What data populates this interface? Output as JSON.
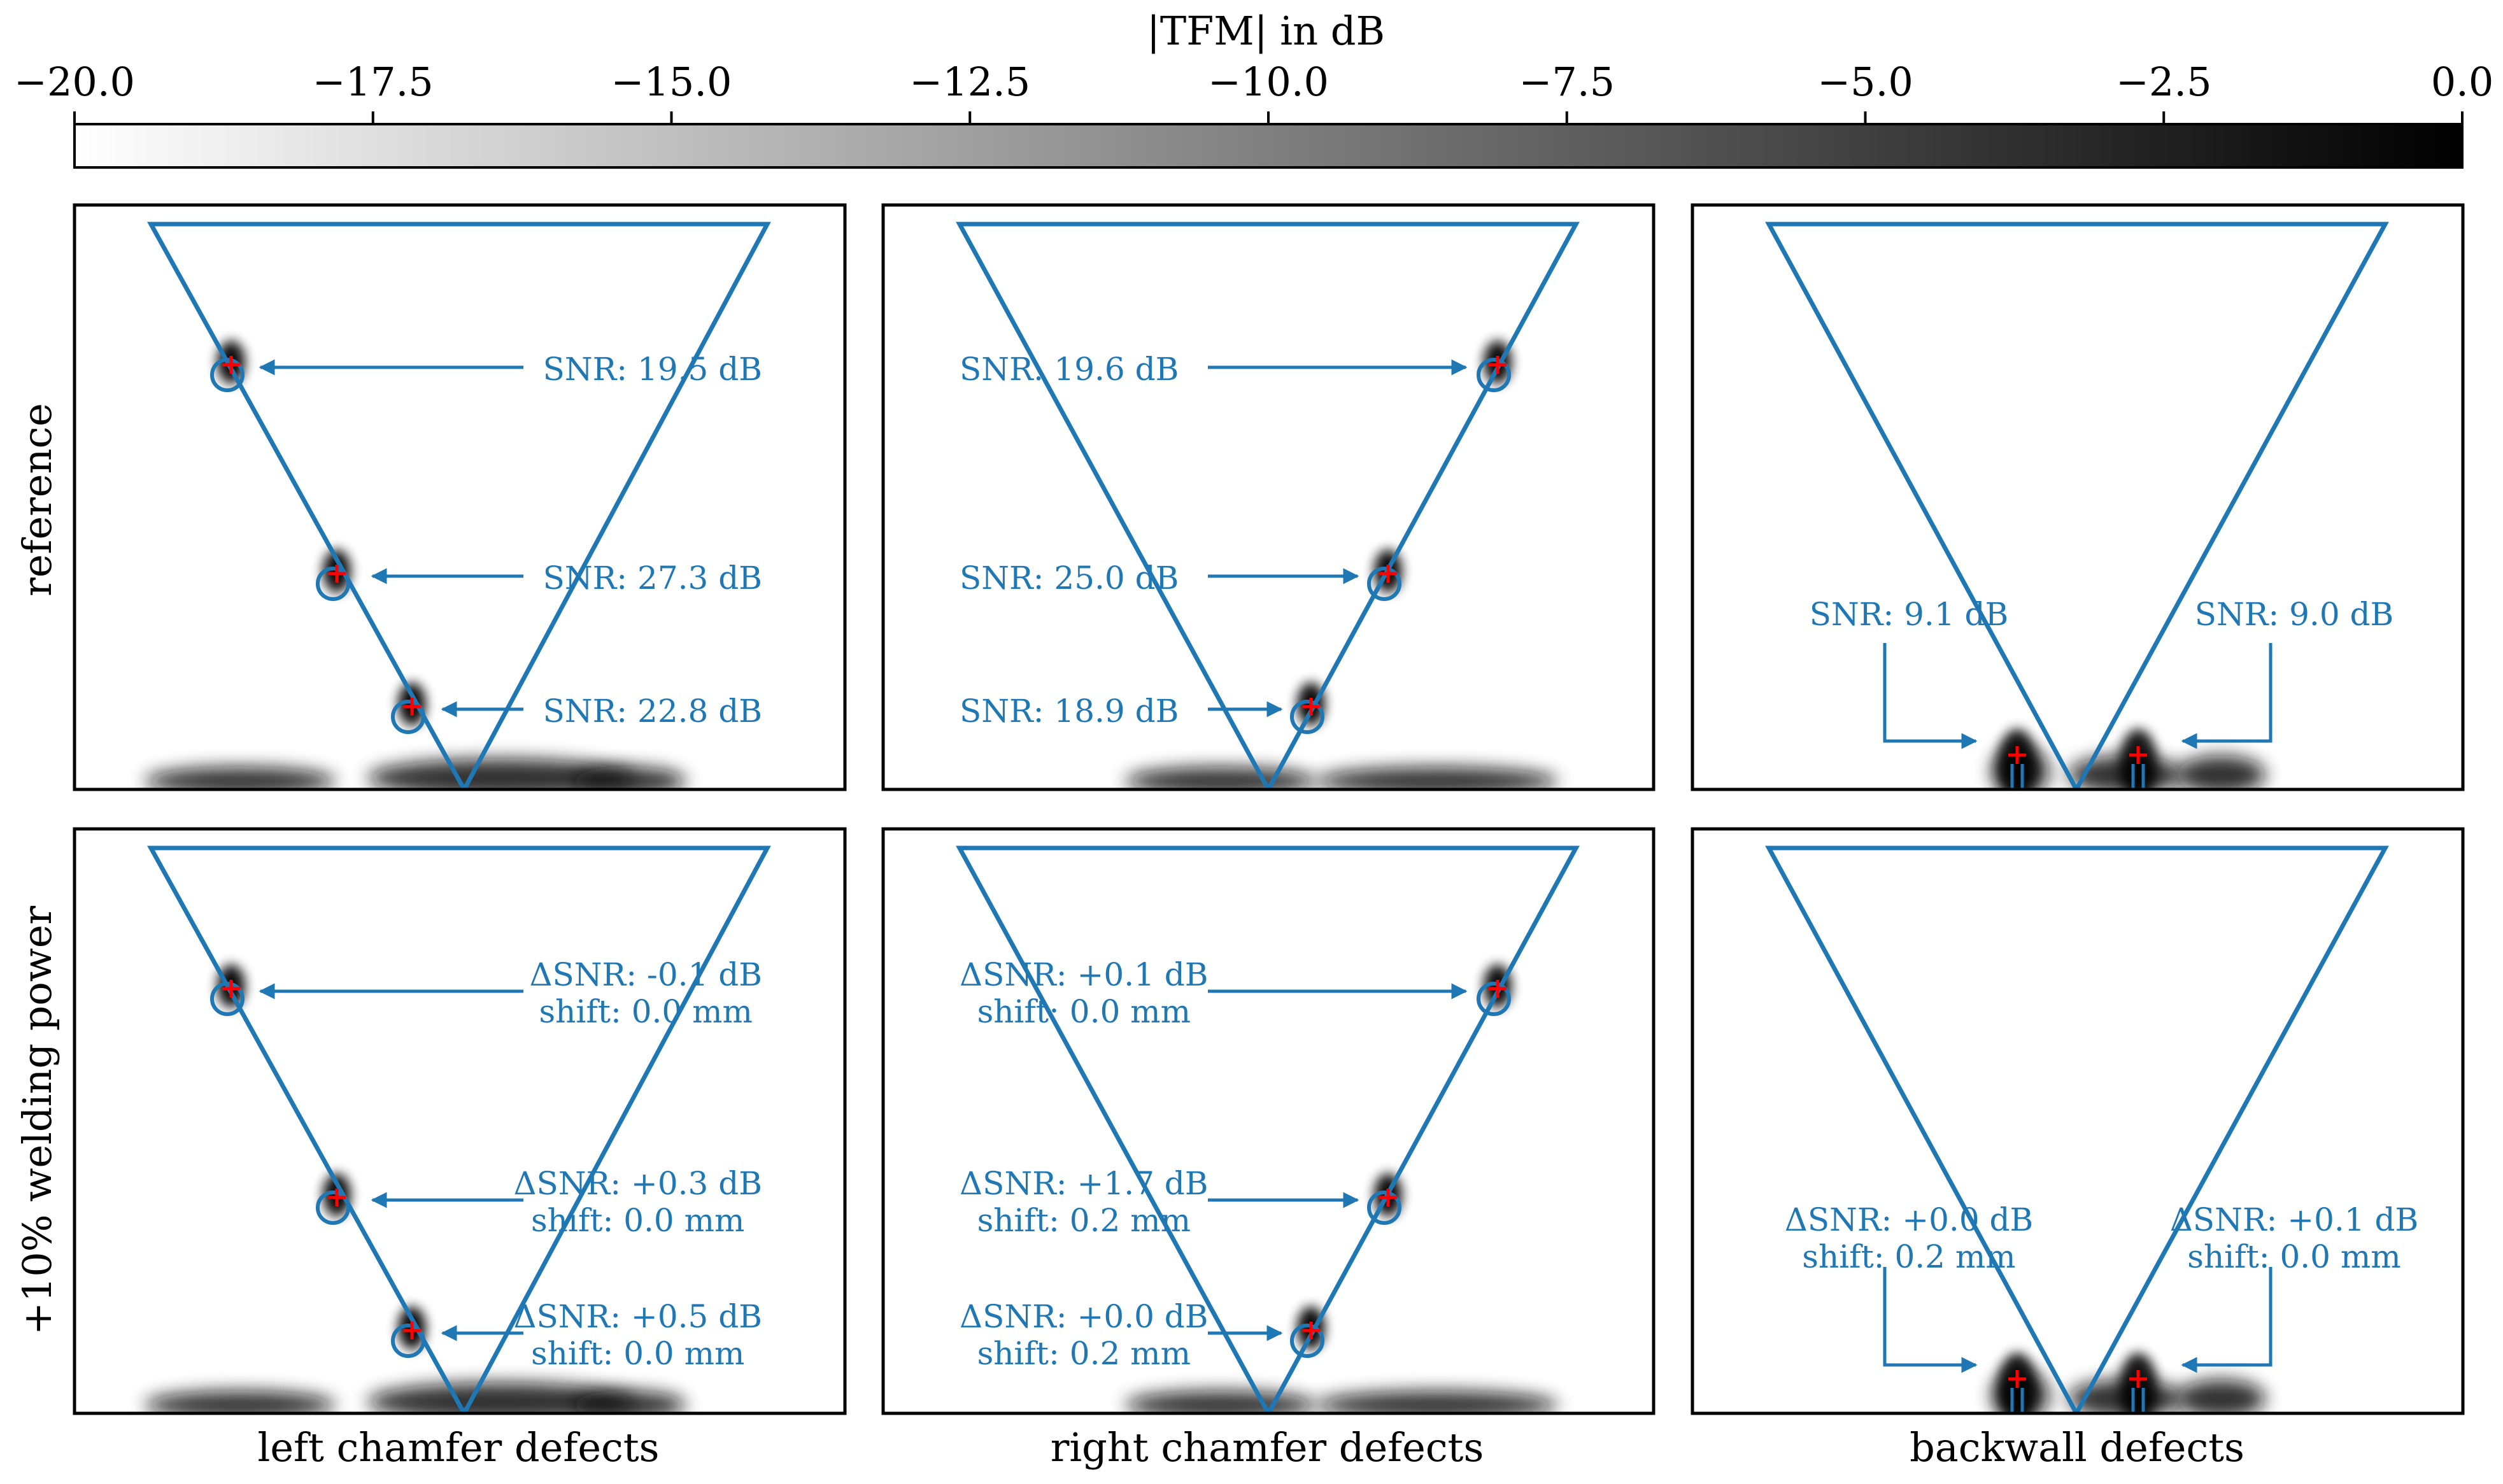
{
  "figure": {
    "colorbar": {
      "label": "|TFM| in dB",
      "range": [
        -20.0,
        0.0
      ],
      "ticks": [
        "−20.0",
        "−17.5",
        "−15.0",
        "−12.5",
        "−10.0",
        "−7.5",
        "−5.0",
        "−2.5",
        "0.0"
      ],
      "color_start": "#ffffff",
      "color_end": "#000000"
    },
    "row_labels": [
      "reference",
      "+10% welding power"
    ],
    "column_labels": [
      "left chamfer defects",
      "right chamfer defects",
      "backwall defects"
    ],
    "colors": {
      "annotation": "#1f77b4",
      "marker": "#ff0000",
      "frame": "#000000"
    }
  },
  "chart_data": {
    "type": "heatmap",
    "colorbar_label": "|TFM| in dB",
    "colorbar_range": [
      -20.0,
      0.0
    ],
    "rows": [
      "reference",
      "+10% welding power"
    ],
    "columns": [
      "left chamfer defects",
      "right chamfer defects",
      "backwall defects"
    ],
    "panels": [
      {
        "row": "reference",
        "column": "left chamfer defects",
        "annotations": [
          {
            "lines": [
              "SNR: 19.5 dB"
            ]
          },
          {
            "lines": [
              "SNR: 27.3 dB"
            ]
          },
          {
            "lines": [
              "SNR: 22.8 dB"
            ]
          }
        ]
      },
      {
        "row": "reference",
        "column": "right chamfer defects",
        "annotations": [
          {
            "lines": [
              "SNR: 19.6 dB"
            ]
          },
          {
            "lines": [
              "SNR: 25.0 dB"
            ]
          },
          {
            "lines": [
              "SNR: 18.9 dB"
            ]
          }
        ]
      },
      {
        "row": "reference",
        "column": "backwall defects",
        "annotations": [
          {
            "lines": [
              "SNR: 9.1 dB"
            ]
          },
          {
            "lines": [
              "SNR: 9.0 dB"
            ]
          }
        ]
      },
      {
        "row": "+10% welding power",
        "column": "left chamfer defects",
        "annotations": [
          {
            "lines": [
              "ΔSNR: -0.1 dB",
              "shift: 0.0 mm"
            ]
          },
          {
            "lines": [
              "ΔSNR: +0.3 dB",
              "shift: 0.0 mm"
            ]
          },
          {
            "lines": [
              "ΔSNR: +0.5 dB",
              "shift: 0.0 mm"
            ]
          }
        ]
      },
      {
        "row": "+10% welding power",
        "column": "right chamfer defects",
        "annotations": [
          {
            "lines": [
              "ΔSNR: +0.1 dB",
              "shift: 0.0 mm"
            ]
          },
          {
            "lines": [
              "ΔSNR: +1.7 dB",
              "shift: 0.2 mm"
            ]
          },
          {
            "lines": [
              "ΔSNR: +0.0 dB",
              "shift: 0.2 mm"
            ]
          }
        ]
      },
      {
        "row": "+10% welding power",
        "column": "backwall defects",
        "annotations": [
          {
            "lines": [
              "ΔSNR: +0.0 dB",
              "shift: 0.2 mm"
            ]
          },
          {
            "lines": [
              "ΔSNR: +0.1 dB",
              "shift: 0.0 mm"
            ]
          }
        ]
      }
    ]
  }
}
